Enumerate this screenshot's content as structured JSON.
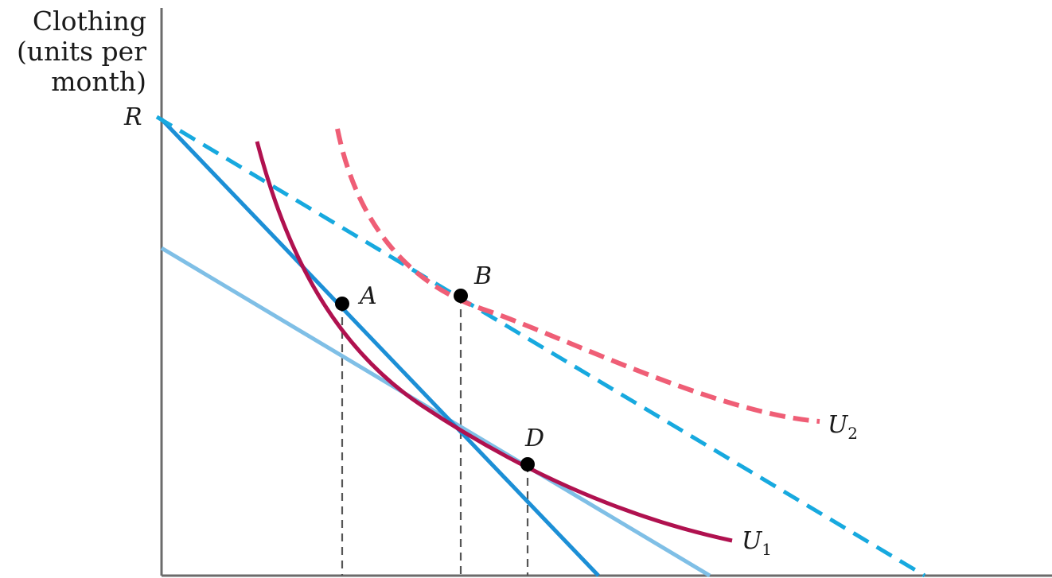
{
  "y_axis_label": [
    "Clothing",
    "(units per",
    "month)"
  ],
  "intercept_label": "R",
  "points": [
    {
      "id": "A",
      "label": "A"
    },
    {
      "id": "B",
      "label": "B"
    },
    {
      "id": "D",
      "label": "D"
    }
  ],
  "curves": {
    "U1": {
      "name": "U",
      "subscript": "1",
      "color": "#b0114f"
    },
    "U2": {
      "name": "U",
      "subscript": "2",
      "color": "#ef5e76"
    }
  },
  "colors": {
    "axis": "#6b6b6b",
    "budget_original": "#1c8fd6",
    "budget_new": "#17a9df",
    "budget_parallel": "#7fbfe6",
    "guide": "#555555",
    "point": "#000000"
  }
}
